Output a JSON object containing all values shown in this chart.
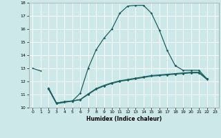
{
  "xlabel": "Humidex (Indice chaleur)",
  "xlim": [
    -0.5,
    23.5
  ],
  "ylim": [
    10,
    18
  ],
  "xticks": [
    0,
    1,
    2,
    3,
    4,
    5,
    6,
    7,
    8,
    9,
    10,
    11,
    12,
    13,
    14,
    15,
    16,
    17,
    18,
    19,
    20,
    21,
    22,
    23
  ],
  "yticks": [
    10,
    11,
    12,
    13,
    14,
    15,
    16,
    17,
    18
  ],
  "bg_color": "#cce8e8",
  "grid_color": "#ffffff",
  "line_color": "#1a6060",
  "series_main": {
    "x": [
      2,
      3,
      4,
      5,
      6,
      7,
      8,
      9,
      10,
      11,
      12,
      13,
      14,
      15,
      16,
      17,
      18
    ],
    "y": [
      11.4,
      10.3,
      10.4,
      10.5,
      11.1,
      13.0,
      14.4,
      15.3,
      16.0,
      17.2,
      17.75,
      17.8,
      17.8,
      17.2,
      15.9,
      14.35,
      13.2
    ]
  },
  "series_start": {
    "x": [
      0,
      1
    ],
    "y": [
      13.0,
      12.8
    ]
  },
  "series_end": {
    "x": [
      18,
      19,
      20,
      21,
      22
    ],
    "y": [
      13.2,
      12.85,
      12.85,
      12.85,
      12.2
    ]
  },
  "series_lower1": {
    "x": [
      2,
      3,
      4,
      5,
      6,
      7,
      8,
      9,
      10,
      11,
      12,
      13,
      14,
      15,
      16,
      17,
      18,
      19,
      20,
      21,
      22
    ],
    "y": [
      11.5,
      10.35,
      10.45,
      10.5,
      10.6,
      11.0,
      11.4,
      11.65,
      11.85,
      12.0,
      12.1,
      12.2,
      12.3,
      12.4,
      12.45,
      12.5,
      12.55,
      12.6,
      12.65,
      12.65,
      12.15
    ]
  },
  "series_lower2": {
    "x": [
      2,
      3,
      4,
      5,
      6,
      7,
      8,
      9,
      10,
      11,
      12,
      13,
      14,
      15,
      16,
      17,
      18,
      19,
      20,
      21,
      22
    ],
    "y": [
      11.5,
      10.35,
      10.45,
      10.52,
      10.62,
      11.05,
      11.45,
      11.7,
      11.9,
      12.05,
      12.15,
      12.25,
      12.35,
      12.45,
      12.5,
      12.55,
      12.6,
      12.65,
      12.7,
      12.7,
      12.2
    ]
  }
}
